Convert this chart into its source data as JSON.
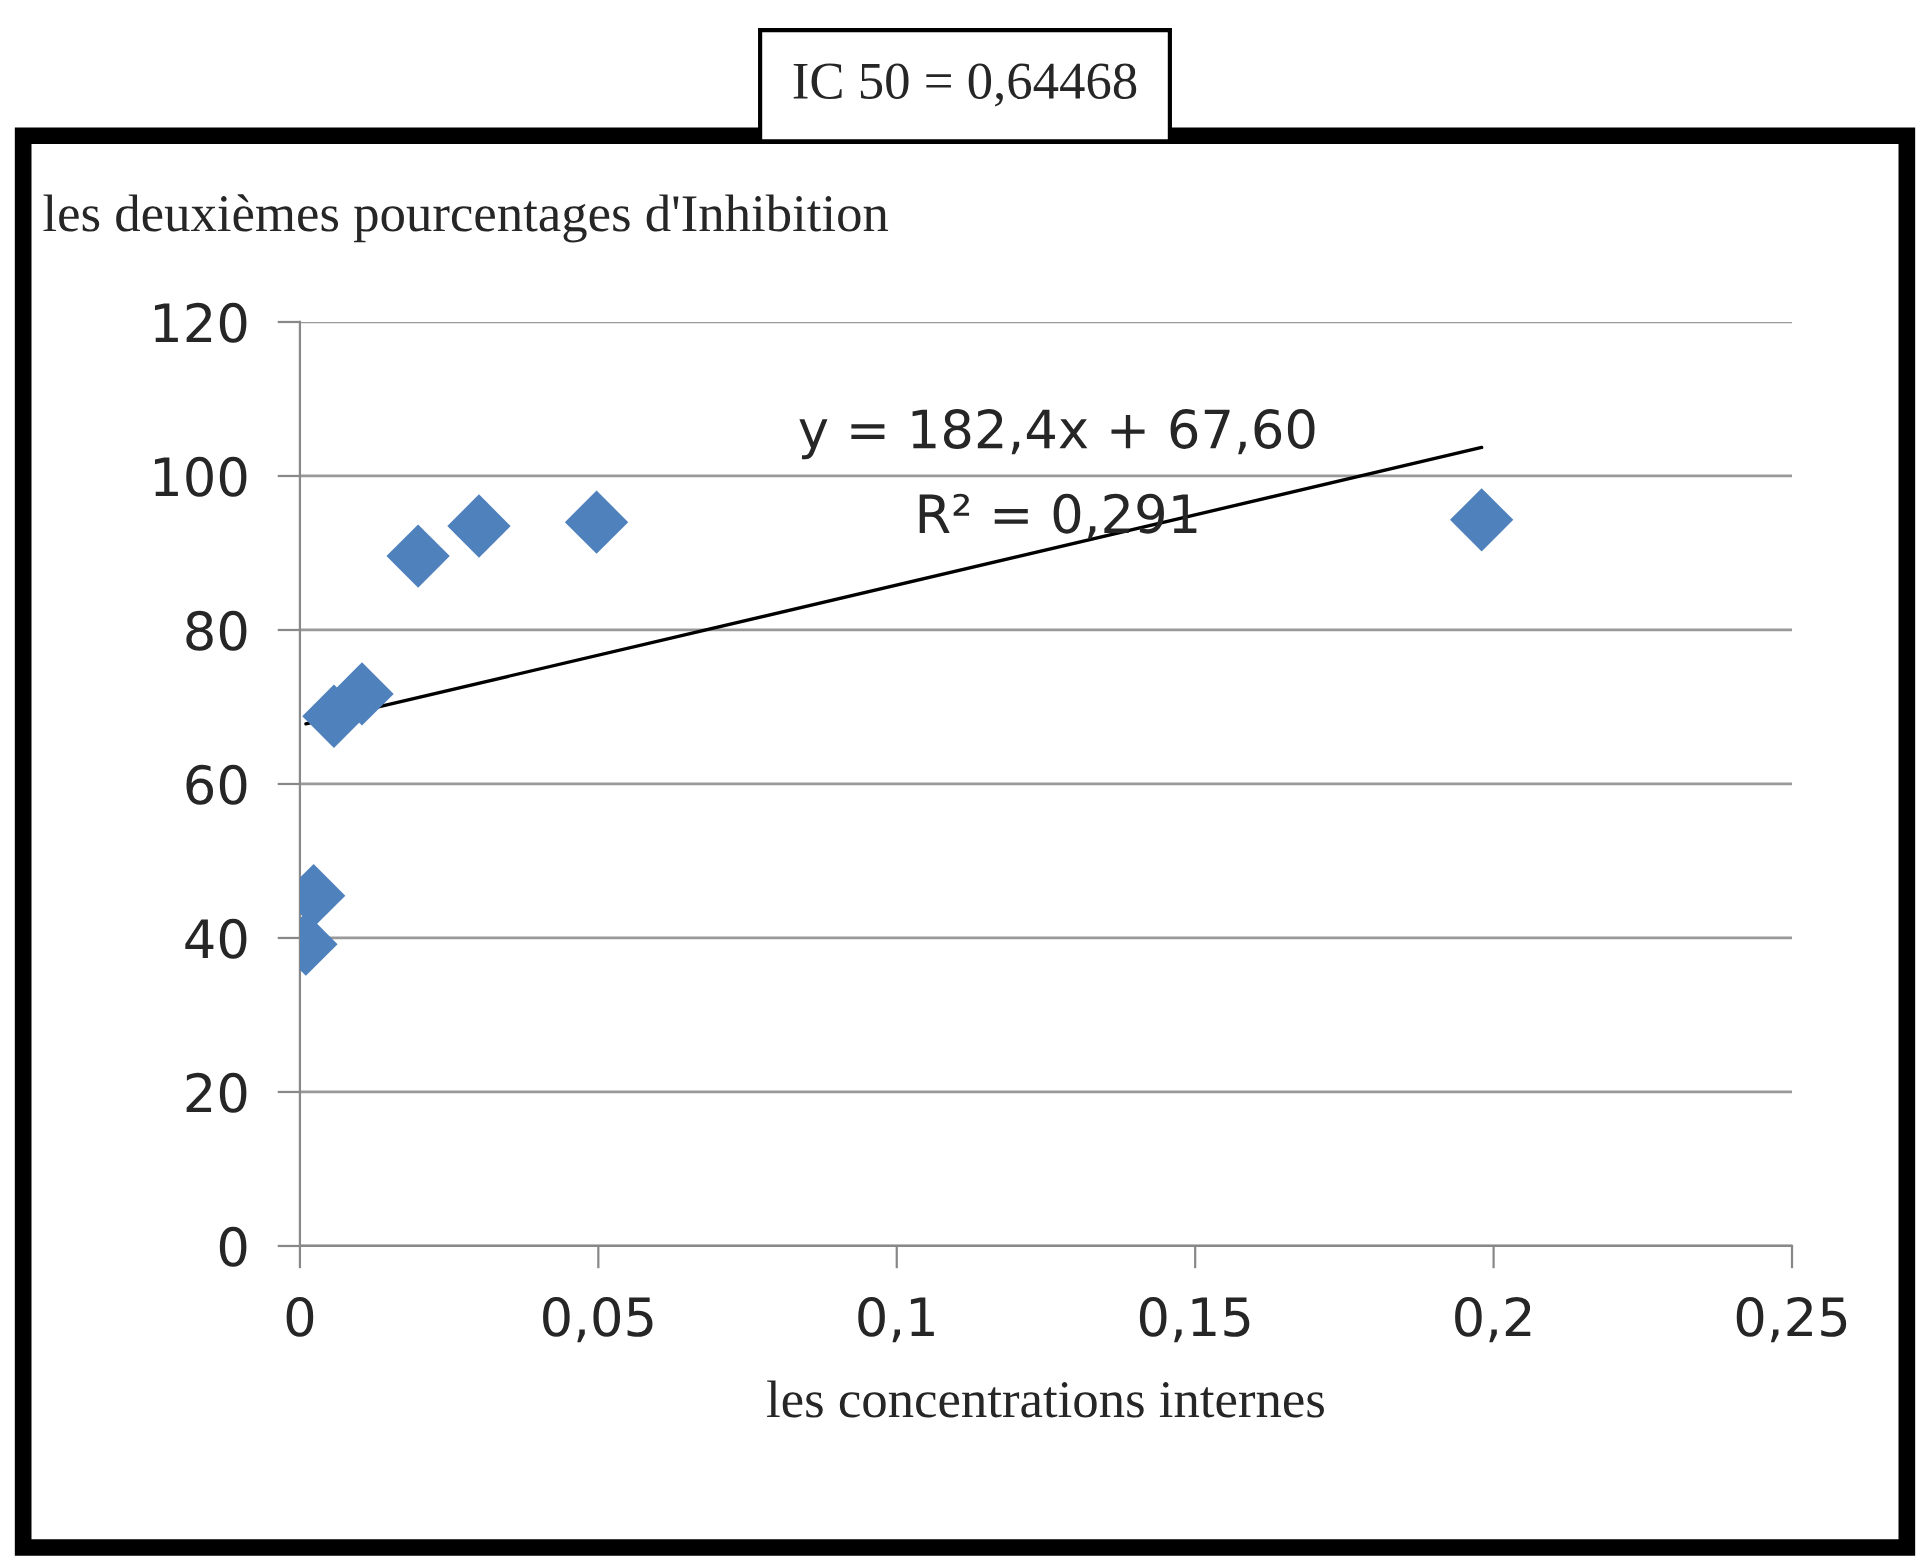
{
  "chart_data": {
    "type": "scatter",
    "ylabel": "les deuxièmes pourcentages d'Inhibition",
    "xlabel": "les concentrations internes",
    "annotations": [
      "IC 50 = 0,64468",
      "y = 182,4x + 67,60",
      "R² = 0,291"
    ],
    "marker": "diamond",
    "grid": "y",
    "legend": false,
    "series": [
      {
        "color": "#4f81bd",
        "x": [
          0.001,
          0.0023,
          0.0057,
          0.0104,
          0.0198,
          0.03,
          0.0497,
          0.198
        ],
        "values": [
          39.2,
          45.5,
          68.8,
          71.7,
          89.6,
          93.5,
          94.0,
          94.3
        ]
      },
      {
        "type": "line",
        "color": "#000000",
        "marker": "none",
        "x": [
          0.001,
          0.198
        ],
        "values": [
          67.8,
          103.7
        ]
      }
    ],
    "xlim": [
      0,
      0.25
    ],
    "ylim": [
      0,
      120
    ],
    "xticks": [
      0,
      {
        "value": 0.05,
        "label": "0,05"
      },
      {
        "value": 0.1,
        "label": "0,1"
      },
      {
        "value": 0.15,
        "label": "0,15"
      },
      {
        "value": 0.2,
        "label": "0,2"
      },
      {
        "value": 0.25,
        "label": "0,25"
      }
    ],
    "yticks": [
      0,
      20,
      40,
      60,
      80,
      100,
      120
    ]
  }
}
